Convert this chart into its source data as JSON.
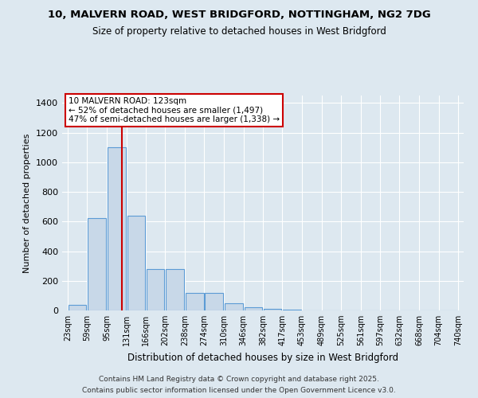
{
  "title1": "10, MALVERN ROAD, WEST BRIDGFORD, NOTTINGHAM, NG2 7DG",
  "title2": "Size of property relative to detached houses in West Bridgford",
  "xlabel": "Distribution of detached houses by size in West Bridgford",
  "ylabel": "Number of detached properties",
  "bar_values": [
    35,
    625,
    1100,
    640,
    280,
    280,
    120,
    120,
    50,
    20,
    10,
    5,
    2,
    1,
    0,
    0,
    0,
    0,
    0,
    0
  ],
  "bin_edges": [
    23,
    59,
    95,
    131,
    166,
    202,
    238,
    274,
    310,
    346,
    382,
    417,
    453,
    489,
    525,
    561,
    597,
    632,
    668,
    704,
    740
  ],
  "bin_labels": [
    "23sqm",
    "59sqm",
    "95sqm",
    "131sqm",
    "166sqm",
    "202sqm",
    "238sqm",
    "274sqm",
    "310sqm",
    "346sqm",
    "382sqm",
    "417sqm",
    "453sqm",
    "489sqm",
    "525sqm",
    "561sqm",
    "597sqm",
    "632sqm",
    "668sqm",
    "704sqm",
    "740sqm"
  ],
  "bar_color": "#c8d8e8",
  "bar_edge_color": "#5b9bd5",
  "property_size": 123,
  "property_label": "10 MALVERN ROAD: 123sqm",
  "line_color": "#cc0000",
  "annotation_smaller": "← 52% of detached houses are smaller (1,497)",
  "annotation_larger": "47% of semi-detached houses are larger (1,338) →",
  "ylim": [
    0,
    1450
  ],
  "yticks": [
    0,
    200,
    400,
    600,
    800,
    1000,
    1200,
    1400
  ],
  "bg_color": "#dde8f0",
  "plot_bg_color": "#dde8f0",
  "grid_color": "#ffffff",
  "footer1": "Contains HM Land Registry data © Crown copyright and database right 2025.",
  "footer2": "Contains public sector information licensed under the Open Government Licence v3.0."
}
